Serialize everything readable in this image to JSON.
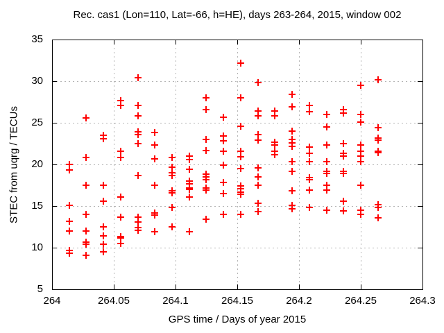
{
  "chart_data": {
    "type": "scatter",
    "title": "Rec. cas1 (Lon=110, Lat=-66, h=HE), days 263-264, 2015, window 002",
    "xlabel": "GPS time / Days of year 2015",
    "ylabel": "STEC from uqrg / TECUs",
    "xlim": [
      264,
      264.3
    ],
    "ylim": [
      5,
      35
    ],
    "x_ticks": [
      264,
      264.05,
      264.1,
      264.15,
      264.2,
      264.25,
      264.3
    ],
    "x_tick_labels": [
      "264",
      "264.05",
      "264.1",
      "264.15",
      "264.2",
      "264.25",
      "264.3"
    ],
    "y_ticks": [
      5,
      10,
      15,
      20,
      25,
      30,
      35
    ],
    "y_tick_labels": [
      "5",
      "10",
      "15",
      "20",
      "25",
      "30",
      "35"
    ],
    "grid": true,
    "legend": "none",
    "marker": {
      "shape": "plus",
      "color": "#ff0000",
      "size": 11,
      "stroke_width": 2
    },
    "grid_color": "#b4b4b4",
    "axis_color": "#000000",
    "background_color": "#ffffff",
    "points": [
      [
        264.0139,
        20.0
      ],
      [
        264.0139,
        19.3
      ],
      [
        264.0139,
        15.1
      ],
      [
        264.0139,
        13.2
      ],
      [
        264.0139,
        12.0
      ],
      [
        264.0139,
        9.7
      ],
      [
        264.0139,
        9.3
      ],
      [
        264.0278,
        25.6
      ],
      [
        264.0278,
        20.8
      ],
      [
        264.0278,
        17.5
      ],
      [
        264.0278,
        14.0
      ],
      [
        264.0278,
        12.0
      ],
      [
        264.0278,
        10.7
      ],
      [
        264.0278,
        10.4
      ],
      [
        264.0278,
        9.1
      ],
      [
        264.0417,
        23.5
      ],
      [
        264.0417,
        23.1
      ],
      [
        264.0417,
        17.5
      ],
      [
        264.0417,
        15.6
      ],
      [
        264.0417,
        12.5
      ],
      [
        264.0417,
        11.4
      ],
      [
        264.0417,
        10.4
      ],
      [
        264.0417,
        9.5
      ],
      [
        264.0556,
        27.7
      ],
      [
        264.0556,
        27.1
      ],
      [
        264.0556,
        21.6
      ],
      [
        264.0556,
        20.8
      ],
      [
        264.0556,
        16.1
      ],
      [
        264.0556,
        13.7
      ],
      [
        264.0556,
        11.3
      ],
      [
        264.0556,
        11.2
      ],
      [
        264.0556,
        10.5
      ],
      [
        264.0694,
        30.4
      ],
      [
        264.0694,
        27.1
      ],
      [
        264.0694,
        25.8
      ],
      [
        264.0694,
        23.9
      ],
      [
        264.0694,
        23.6
      ],
      [
        264.0694,
        22.5
      ],
      [
        264.0694,
        18.7
      ],
      [
        264.0694,
        13.7
      ],
      [
        264.0694,
        13.1
      ],
      [
        264.0694,
        12.4
      ],
      [
        264.0694,
        12.1
      ],
      [
        264.0833,
        23.8
      ],
      [
        264.0833,
        22.3
      ],
      [
        264.0833,
        20.7
      ],
      [
        264.0833,
        17.5
      ],
      [
        264.0833,
        14.2
      ],
      [
        264.0833,
        13.9
      ],
      [
        264.0833,
        11.9
      ],
      [
        264.0972,
        20.8
      ],
      [
        264.0972,
        19.7
      ],
      [
        264.0972,
        19.0
      ],
      [
        264.0972,
        18.7
      ],
      [
        264.0972,
        16.8
      ],
      [
        264.0972,
        16.6
      ],
      [
        264.0972,
        14.8
      ],
      [
        264.0972,
        12.5
      ],
      [
        264.1111,
        21.0
      ],
      [
        264.1111,
        20.6
      ],
      [
        264.1111,
        19.4
      ],
      [
        264.1111,
        18.0
      ],
      [
        264.1111,
        17.7
      ],
      [
        264.1111,
        17.2
      ],
      [
        264.1111,
        17.0
      ],
      [
        264.1111,
        16.1
      ],
      [
        264.1111,
        11.9
      ],
      [
        264.125,
        28.0
      ],
      [
        264.125,
        26.6
      ],
      [
        264.125,
        23.0
      ],
      [
        264.125,
        21.7
      ],
      [
        264.125,
        18.8
      ],
      [
        264.125,
        18.5
      ],
      [
        264.125,
        18.2
      ],
      [
        264.125,
        17.2
      ],
      [
        264.125,
        16.9
      ],
      [
        264.125,
        13.4
      ],
      [
        264.1389,
        25.7
      ],
      [
        264.1389,
        23.4
      ],
      [
        264.1389,
        22.8
      ],
      [
        264.1389,
        21.6
      ],
      [
        264.1389,
        19.9
      ],
      [
        264.1389,
        17.8
      ],
      [
        264.1389,
        16.5
      ],
      [
        264.1389,
        14.0
      ],
      [
        264.1528,
        32.2
      ],
      [
        264.1528,
        28.0
      ],
      [
        264.1528,
        24.6
      ],
      [
        264.1528,
        21.6
      ],
      [
        264.1528,
        20.9
      ],
      [
        264.1528,
        19.5
      ],
      [
        264.1528,
        17.4
      ],
      [
        264.1528,
        17.1
      ],
      [
        264.1528,
        16.7
      ],
      [
        264.1528,
        16.4
      ],
      [
        264.1528,
        14.0
      ],
      [
        264.1667,
        29.8
      ],
      [
        264.1667,
        26.4
      ],
      [
        264.1667,
        25.8
      ],
      [
        264.1667,
        23.6
      ],
      [
        264.1667,
        22.9
      ],
      [
        264.1667,
        19.6
      ],
      [
        264.1667,
        18.5
      ],
      [
        264.1667,
        17.5
      ],
      [
        264.1667,
        15.3
      ],
      [
        264.1667,
        14.3
      ],
      [
        264.1806,
        26.4
      ],
      [
        264.1806,
        25.8
      ],
      [
        264.1806,
        22.7
      ],
      [
        264.1806,
        22.3
      ],
      [
        264.1806,
        21.6
      ],
      [
        264.1806,
        21.2
      ],
      [
        264.1944,
        28.4
      ],
      [
        264.1944,
        26.9
      ],
      [
        264.1944,
        24.0
      ],
      [
        264.1944,
        23.0
      ],
      [
        264.1944,
        22.6
      ],
      [
        264.1944,
        22.2
      ],
      [
        264.1944,
        20.3
      ],
      [
        264.1944,
        19.2
      ],
      [
        264.1944,
        16.8
      ],
      [
        264.1944,
        15.1
      ],
      [
        264.1944,
        14.7
      ],
      [
        264.2083,
        27.1
      ],
      [
        264.2083,
        26.3
      ],
      [
        264.2083,
        22.1
      ],
      [
        264.2083,
        21.3
      ],
      [
        264.2083,
        20.3
      ],
      [
        264.2083,
        18.4
      ],
      [
        264.2083,
        18.2
      ],
      [
        264.2083,
        16.9
      ],
      [
        264.2083,
        14.8
      ],
      [
        264.2222,
        26.0
      ],
      [
        264.2222,
        24.5
      ],
      [
        264.2222,
        22.3
      ],
      [
        264.2222,
        20.3
      ],
      [
        264.2222,
        19.2
      ],
      [
        264.2222,
        18.9
      ],
      [
        264.2222,
        17.5
      ],
      [
        264.2222,
        16.9
      ],
      [
        264.2222,
        14.5
      ],
      [
        264.2361,
        26.6
      ],
      [
        264.2361,
        26.2
      ],
      [
        264.2361,
        22.5
      ],
      [
        264.2361,
        21.3
      ],
      [
        264.2361,
        21.0
      ],
      [
        264.2361,
        19.2
      ],
      [
        264.2361,
        18.9
      ],
      [
        264.2361,
        15.6
      ],
      [
        264.2361,
        14.4
      ],
      [
        264.25,
        29.5
      ],
      [
        264.25,
        26.0
      ],
      [
        264.25,
        25.1
      ],
      [
        264.25,
        22.3
      ],
      [
        264.25,
        21.6
      ],
      [
        264.25,
        21.0
      ],
      [
        264.25,
        20.3
      ],
      [
        264.25,
        17.5
      ],
      [
        264.25,
        14.5
      ],
      [
        264.25,
        14.0
      ],
      [
        264.2639,
        30.2
      ],
      [
        264.2639,
        24.4
      ],
      [
        264.2639,
        23.2
      ],
      [
        264.2639,
        22.9
      ],
      [
        264.2639,
        21.6
      ],
      [
        264.2639,
        21.4
      ],
      [
        264.2639,
        15.2
      ],
      [
        264.2639,
        14.8
      ],
      [
        264.2639,
        13.6
      ]
    ]
  }
}
